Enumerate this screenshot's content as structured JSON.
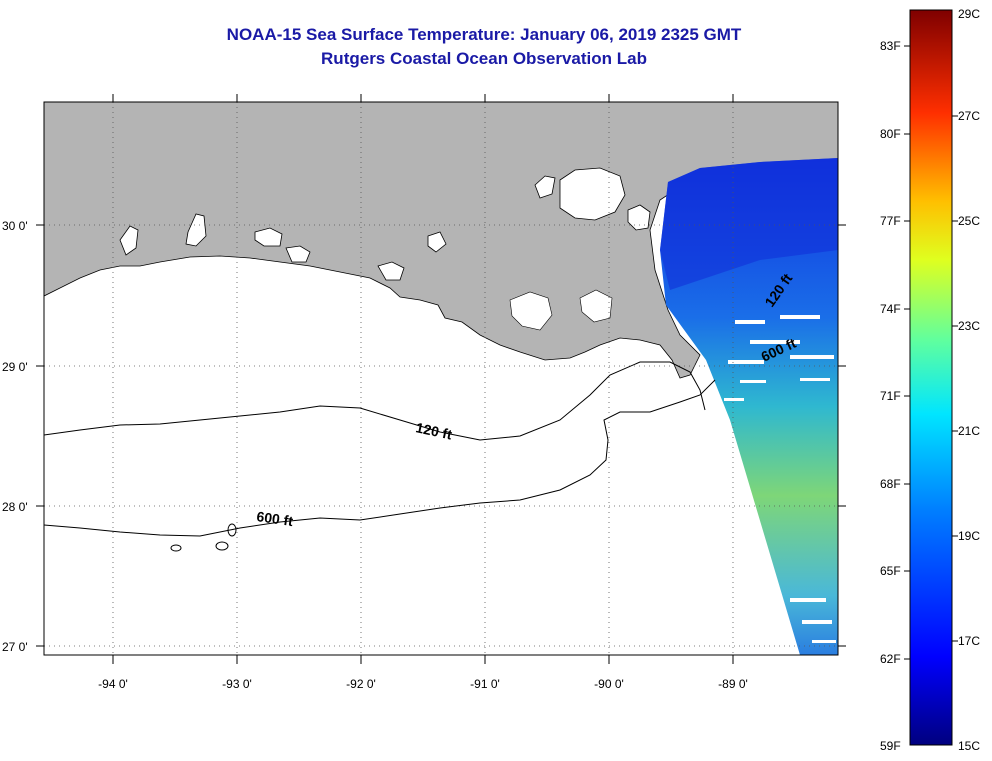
{
  "title": {
    "line1": "NOAA-15 Sea Surface Temperature:  January 06, 2019 2325 GMT",
    "line2": "Rutgers Coastal Ocean Observation Lab"
  },
  "map": {
    "lat_labels": [
      "30 0'",
      "29 0'",
      "28 0'",
      "27 0'"
    ],
    "lon_labels": [
      "-94 0'",
      "-93 0'",
      "-92 0'",
      "-91 0'",
      "-90 0'",
      "-89 0'"
    ],
    "contour_labels": [
      "120 ft",
      "600 ft",
      "120 ft",
      "600 ft"
    ],
    "colors": {
      "land": "#b4b4b4",
      "title": "#1a1aa6",
      "background": "#ffffff"
    }
  },
  "colorbar": {
    "fahrenheit_labels": [
      "83F",
      "80F",
      "77F",
      "74F",
      "71F",
      "68F",
      "65F",
      "62F",
      "59F"
    ],
    "celsius_labels": [
      "29C",
      "27C",
      "25C",
      "23C",
      "21C",
      "19C",
      "17C",
      "15C"
    ],
    "range_c": [
      15,
      29
    ],
    "colormap": [
      "#00007f",
      "#0000ff",
      "#007fff",
      "#00ffff",
      "#7fff7f",
      "#ffff00",
      "#ff7f00",
      "#ff0000",
      "#7f0000"
    ]
  }
}
